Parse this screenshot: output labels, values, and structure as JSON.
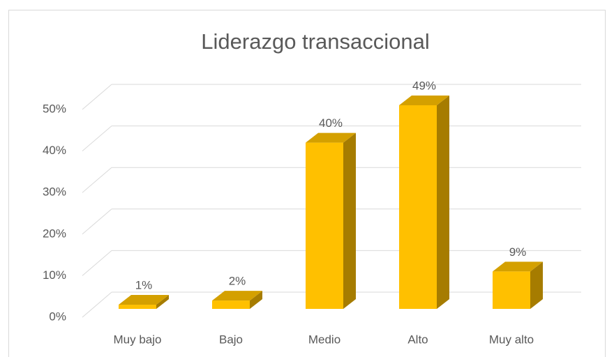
{
  "chart_data": {
    "type": "bar",
    "title": "Liderazgo transaccional",
    "categories": [
      "Muy bajo",
      "Bajo",
      "Medio",
      "Alto",
      "Muy alto"
    ],
    "values": [
      1,
      2,
      40,
      49,
      9
    ],
    "value_labels": [
      "1%",
      "2%",
      "40%",
      "49%",
      "9%"
    ],
    "color": "#ffc000",
    "ylim": [
      0,
      50
    ],
    "yticks": [
      {
        "value": 0,
        "label": "0%"
      },
      {
        "value": 10,
        "label": "10%"
      },
      {
        "value": 20,
        "label": "20%"
      },
      {
        "value": 30,
        "label": "30%"
      },
      {
        "value": 40,
        "label": "40%"
      },
      {
        "value": 50,
        "label": "50%"
      }
    ],
    "grid": true
  }
}
